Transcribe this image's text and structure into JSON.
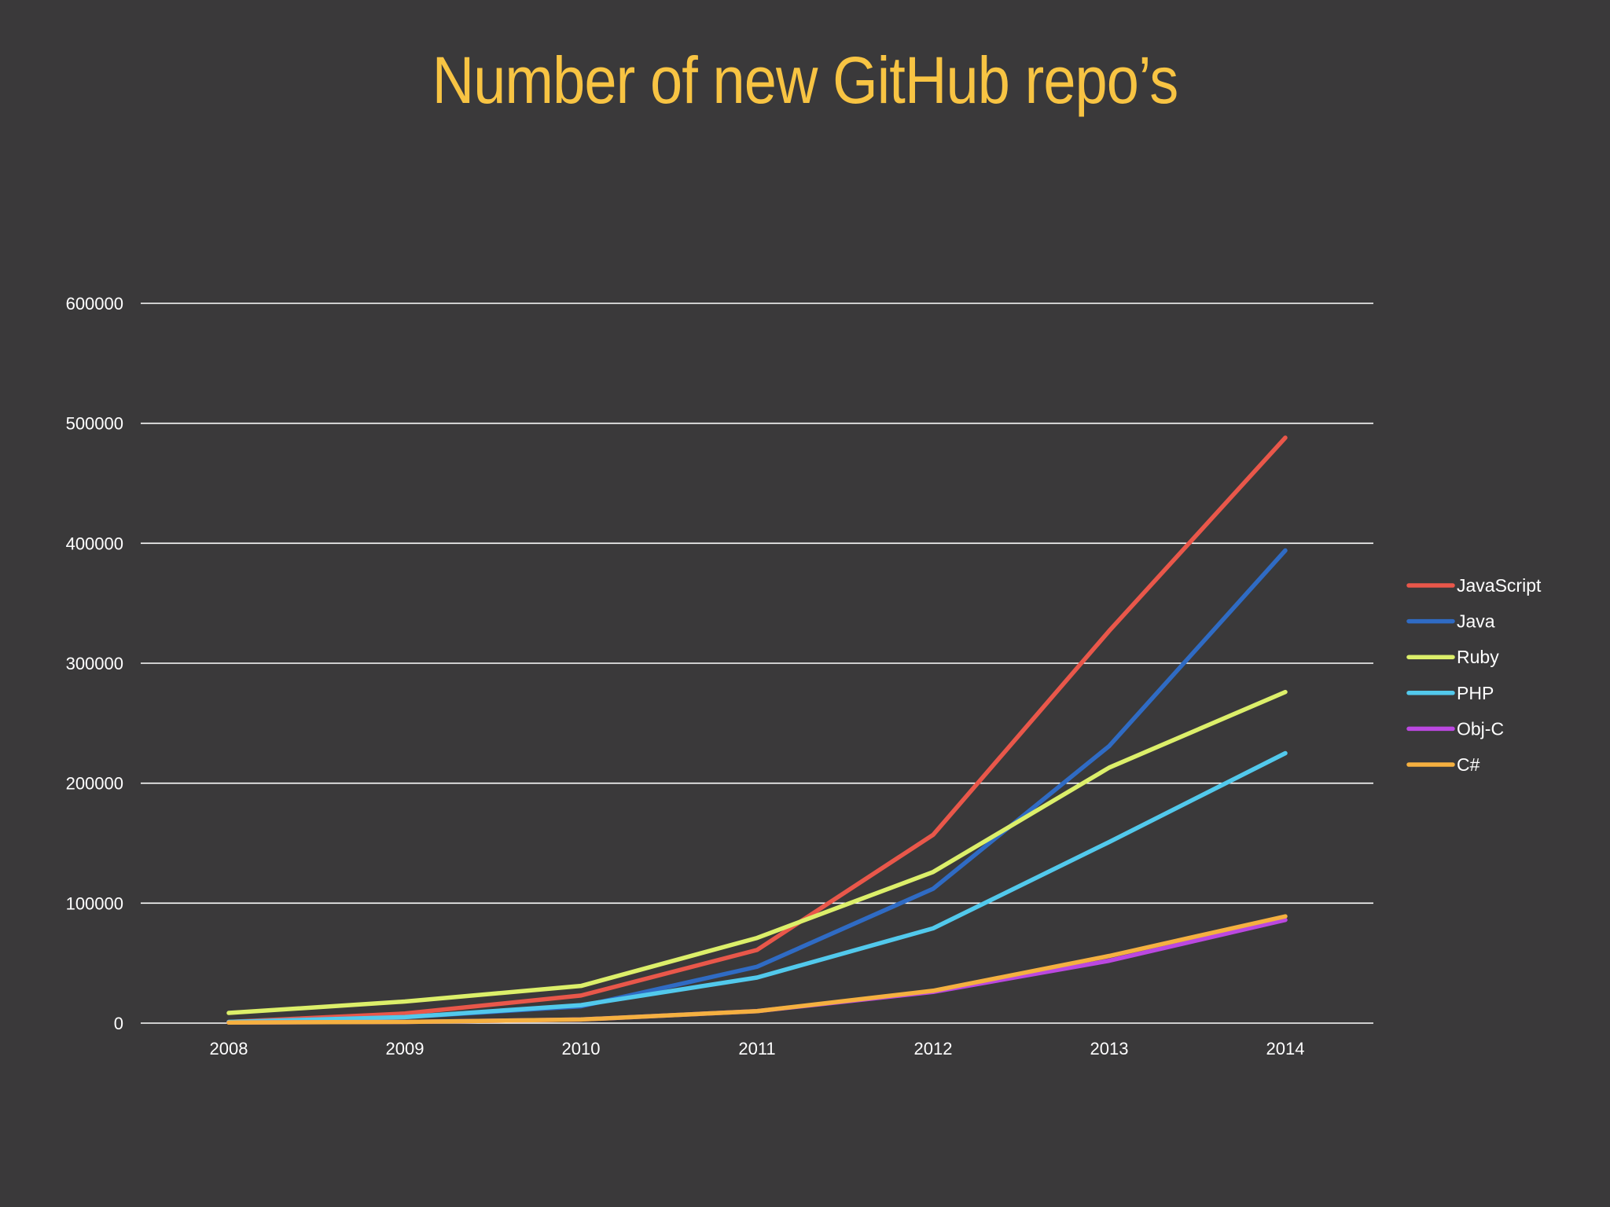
{
  "chart_data": {
    "type": "line",
    "title": "Number of new GitHub repo’s",
    "xlabel": "",
    "ylabel": "",
    "categories": [
      "2008",
      "2009",
      "2010",
      "2011",
      "2012",
      "2013",
      "2014"
    ],
    "ylim": [
      0,
      600000
    ],
    "yticks": [
      0,
      100000,
      200000,
      300000,
      400000,
      500000,
      600000
    ],
    "ytick_labels": [
      "0",
      "100000",
      "200000",
      "300000",
      "400000",
      "500000",
      "600000"
    ],
    "grid": true,
    "legend_position": "right",
    "series": [
      {
        "name": "JavaScript",
        "color": "#e9574a",
        "values": [
          1000,
          8000,
          23000,
          61000,
          157000,
          327000,
          488000
        ]
      },
      {
        "name": "Java",
        "color": "#2f6bc4",
        "values": [
          1000,
          5000,
          14000,
          47000,
          112000,
          231000,
          394000
        ]
      },
      {
        "name": "Ruby",
        "color": "#dcef6a",
        "values": [
          8500,
          18000,
          31000,
          71000,
          126000,
          213000,
          276000
        ]
      },
      {
        "name": "PHP",
        "color": "#52c9ec",
        "values": [
          1000,
          5000,
          15000,
          38000,
          79000,
          151000,
          225000
        ]
      },
      {
        "name": "Obj-C",
        "color": "#bb48e0",
        "values": [
          500,
          1000,
          3000,
          10000,
          26000,
          52000,
          86000
        ]
      },
      {
        "name": "C#",
        "color": "#f5b040",
        "values": [
          500,
          1000,
          3000,
          10000,
          27000,
          56000,
          89000
        ]
      }
    ]
  }
}
